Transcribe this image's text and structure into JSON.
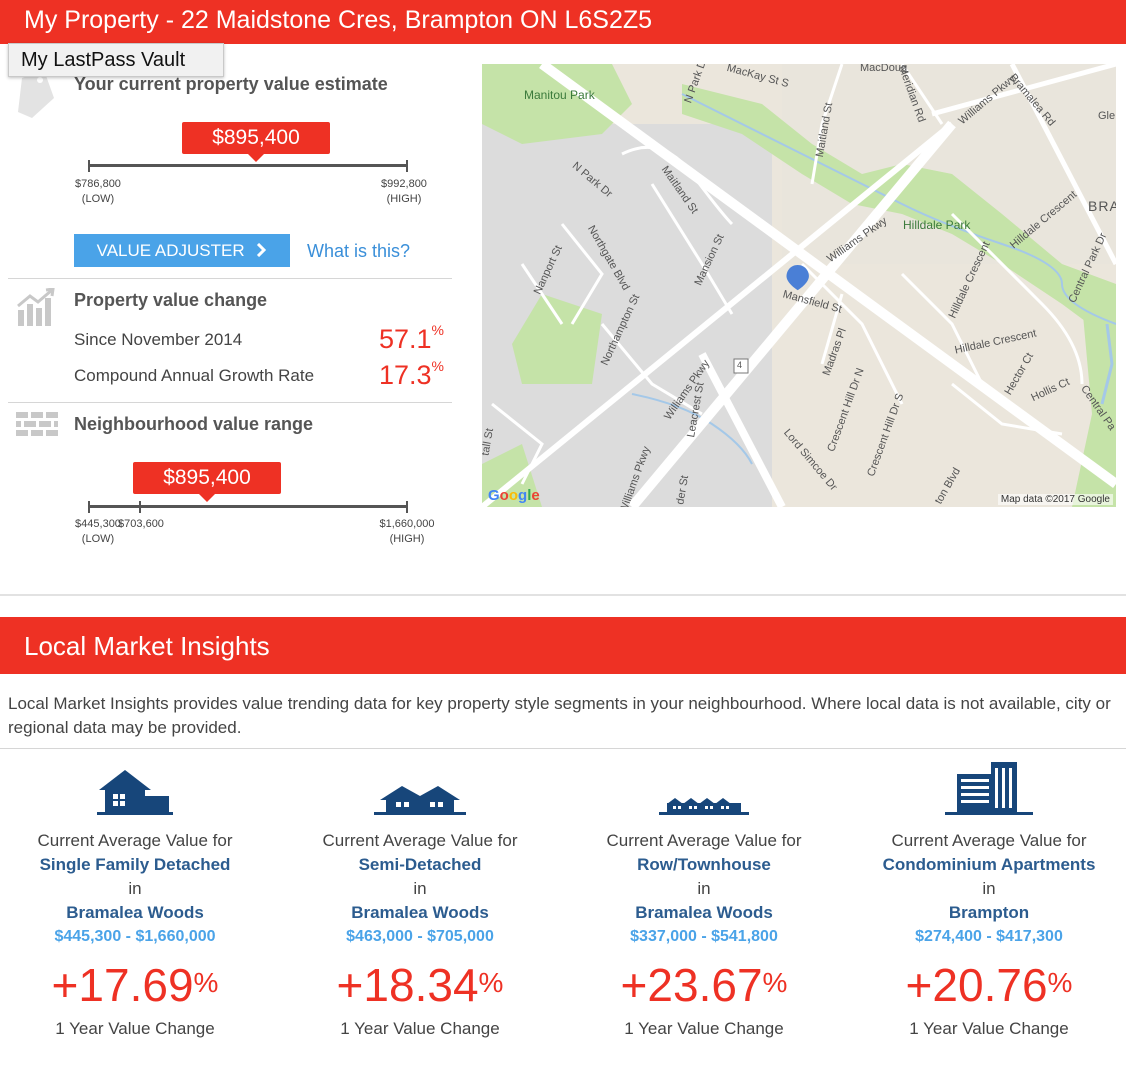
{
  "header": {
    "title": "My Property - 22 Maidstone Cres, Brampton ON L6S2Z5"
  },
  "lastpass": {
    "label": "My LastPass Vault"
  },
  "estimate": {
    "heading": "Your current property value estimate",
    "value": "$895,400",
    "low": "$786,800",
    "low_label": "(LOW)",
    "high": "$992,800",
    "high_label": "(HIGH)",
    "adjuster_label": "VALUE ADJUSTER",
    "what_is_this": "What is this?"
  },
  "value_change": {
    "heading": "Property value change",
    "since_label": "Since November 2014",
    "since_value": "57.1",
    "cagr_label": "Compound Annual Growth Rate",
    "cagr_value": "17.3",
    "percent_symbol": "%"
  },
  "neighbourhood": {
    "heading": "Neighbourhood value range",
    "value": "$895,400",
    "low": "$445,300",
    "mid": "$703,600",
    "low_label": "(LOW)",
    "high": "$1,660,000",
    "high_label": "(HIGH)"
  },
  "map": {
    "labels": {
      "manitou_park": "Manitou Park",
      "hilldale_park": "Hilldale Park",
      "williams_pkwy_1": "Williams Pkwy",
      "williams_pkwy_2": "Williams Pkwy",
      "williams_pkwy_3": "Williams Pkwy",
      "williams_pkwy_4": "Williams Pkwy",
      "n_park_dr_1": "N Park Dr",
      "n_park_dr_2": "N Park Dr",
      "maitland_st_1": "Maitland St",
      "maitland_st_2": "Maitland St",
      "mackay_st": "MacKay St S",
      "macdougall": "MacDoug",
      "meridian_rd": "Meridian Rd",
      "bramalea_rd": "Bramalea Rd",
      "northgate_blvd": "Northgate Blvd",
      "nanport_st": "Nanport St",
      "mansion_st": "Mansion St",
      "northampton_st": "Northampton St",
      "mansfield_st": "Mansfield St",
      "madras_pl": "Madras Pl",
      "leacrest_st": "Leacrest St",
      "crescent_hill_dr_n": "Crescent Hill Dr N",
      "crescent_hill_dr_s": "Crescent Hill Dr S",
      "lord_simcoe_dr": "Lord Simcoe Dr",
      "hilldale_crescent_1": "Hilldale Crescent",
      "hilldale_crescent_2": "Hilldale Crescent",
      "hilldale_crescent_3": "Hilldale Crescent",
      "hector_ct": "Hector Ct",
      "hollis_ct": "Hollis Ct",
      "central_park_dr_1": "Central Park Dr",
      "central_park_dr_2": "Central Pa",
      "route_4": "4",
      "bra": "BRA",
      "gle": "Gle",
      "tall_st": "tall St",
      "der_st": "der St",
      "ton_blvd": "ton Blvd"
    },
    "google": "Google",
    "attribution": "Map data ©2017 Google",
    "colors": {
      "park": "#c5e3a8",
      "road": "#ffffff",
      "residential": "#dedede",
      "land": "#ebe6dc",
      "water": "#a4c8e8",
      "pin": "#4a7fd6"
    }
  },
  "insights": {
    "title": "Local Market Insights",
    "intro": "Local Market Insights provides value trending data for key property style segments in your neighbourhood. Where local data is not available, city or regional data may be provided.",
    "segments": [
      {
        "prefix": "Current Average Value for",
        "style": "Single Family Detached",
        "in": "in",
        "area": "Bramalea Woods",
        "range": "$445,300 - $1,660,000",
        "change": "+17.69",
        "change_label": "1 Year Value Change",
        "icon": "detached-house-icon"
      },
      {
        "prefix": "Current Average Value for",
        "style": "Semi-Detached",
        "in": "in",
        "area": "Bramalea Woods",
        "range": "$463,000 - $705,000",
        "change": "+18.34",
        "change_label": "1 Year Value Change",
        "icon": "semi-detached-icon"
      },
      {
        "prefix": "Current Average Value for",
        "style": "Row/Townhouse",
        "in": "in",
        "area": "Bramalea Woods",
        "range": "$337,000 - $541,800",
        "change": "+23.67",
        "change_label": "1 Year Value Change",
        "icon": "townhouse-icon"
      },
      {
        "prefix": "Current Average Value for",
        "style": "Condominium Apartments",
        "in": "in",
        "area": "Brampton",
        "range": "$274,400 - $417,300",
        "change": "+20.76",
        "change_label": "1 Year Value Change",
        "icon": "condo-building-icon"
      }
    ],
    "percent_symbol": "%"
  },
  "colors": {
    "accent": "#ee3124",
    "link_blue": "#3a8fd9",
    "button_blue": "#4aa3e8",
    "navy": "#2c5c8f",
    "icon_navy": "#17467a"
  }
}
